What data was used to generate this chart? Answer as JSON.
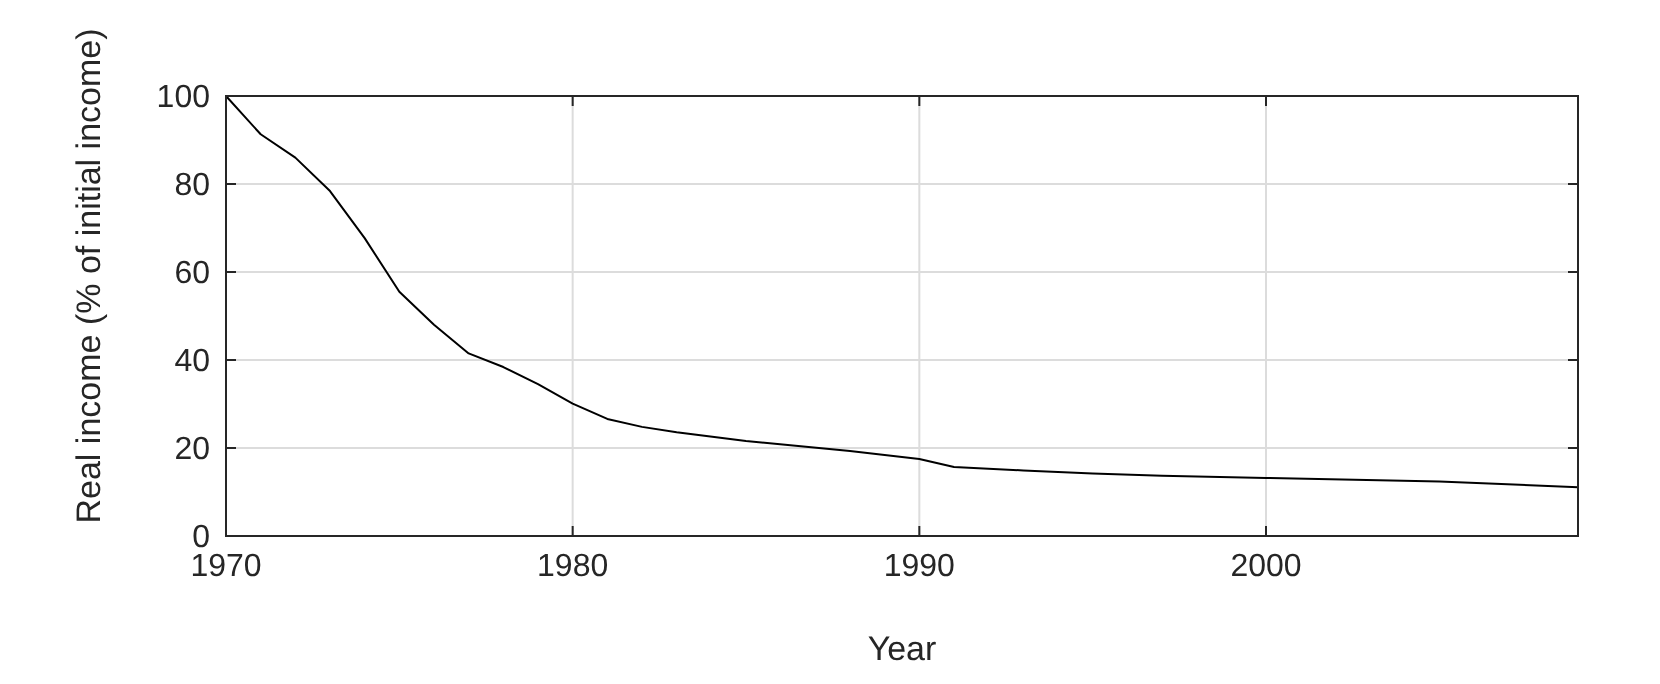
{
  "chart_data": {
    "type": "line",
    "xlabel": "Year",
    "ylabel": "Real income (% of initial income)",
    "x": [
      1970,
      1971,
      1972,
      1973,
      1974,
      1975,
      1976,
      1977,
      1978,
      1979,
      1980,
      1981,
      1982,
      1983,
      1985,
      1988,
      1990,
      1991,
      1993,
      1995,
      1997,
      2000,
      2005,
      2009
    ],
    "series": [
      {
        "color": "#000000",
        "values": [
          100,
          91.3,
          86,
          78.4,
          67.7,
          55.5,
          48,
          41.5,
          38.4,
          34.5,
          30.1,
          26.6,
          24.8,
          23.6,
          21.6,
          19.3,
          17.5,
          15.7,
          14.9,
          14.2,
          13.7,
          13.2,
          12.4,
          11.1
        ]
      }
    ],
    "xlim": [
      1970,
      2009
    ],
    "xticks": [
      1970,
      1980,
      1990,
      2000
    ],
    "ylim": [
      0,
      100
    ],
    "yticks": [
      0,
      20,
      40,
      60,
      80,
      100
    ],
    "grid": true,
    "marker": "none",
    "line_style": "solid"
  }
}
